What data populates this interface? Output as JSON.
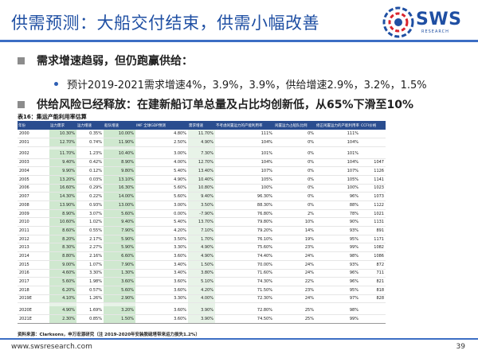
{
  "header": {
    "title": "供需预测：大船交付结束，供需小幅改善",
    "logo_text": "SWS",
    "logo_sub": "RESEARCH"
  },
  "bullets": {
    "b1": "需求增速趋弱，但仍跑赢供给：",
    "b2": "预计2019-2021需求增速4%，3.9%，3.9%，供给增速2.9%，3.2%，1.5%",
    "b3": "供给风险已经释放：在建新船订单总量及占比均创新低，从65%下滑至10%"
  },
  "table": {
    "caption": "表16：集运产能利用率估算",
    "headers": [
      "年份",
      "运力需求",
      "运力增速",
      "船队增速",
      "IMF 全球GDP预测",
      "需求增速",
      "不考虑闲置运力的产能利用率",
      "闲置运力占船队比例",
      "修正闲置运力的产能利用率",
      "CCFI价格"
    ],
    "rows": [
      [
        "2000",
        "10.30%",
        "0.35%",
        "10.00%",
        "4.80%",
        "11.70%",
        "111%",
        "0%",
        "111%",
        ""
      ],
      [
        "2001",
        "12.70%",
        "0.74%",
        "11.90%",
        "2.50%",
        "4.90%",
        "104%",
        "0%",
        "104%",
        ""
      ],
      [
        "2002",
        "11.70%",
        "1.23%",
        "10.40%",
        "3.00%",
        "7.30%",
        "101%",
        "0%",
        "101%",
        ""
      ],
      [
        "2003",
        "9.40%",
        "0.42%",
        "8.90%",
        "4.00%",
        "12.70%",
        "104%",
        "0%",
        "104%",
        "1047"
      ],
      [
        "2004",
        "9.90%",
        "0.12%",
        "9.80%",
        "5.40%",
        "13.40%",
        "107%",
        "0%",
        "107%",
        "1126"
      ],
      [
        "2005",
        "13.20%",
        "0.03%",
        "13.10%",
        "4.90%",
        "10.40%",
        "105%",
        "0%",
        "105%",
        "1141"
      ],
      [
        "2006",
        "16.60%",
        "0.29%",
        "16.30%",
        "5.60%",
        "10.80%",
        "100%",
        "0%",
        "100%",
        "1023"
      ],
      [
        "2007",
        "14.30%",
        "0.22%",
        "14.00%",
        "5.60%",
        "9.40%",
        "96.30%",
        "0%",
        "96%",
        "1073"
      ],
      [
        "2008",
        "13.90%",
        "0.93%",
        "13.00%",
        "3.00%",
        "3.50%",
        "88.30%",
        "0%",
        "88%",
        "1122"
      ],
      [
        "2009",
        "8.90%",
        "3.07%",
        "5.60%",
        "0.00%",
        "-7.90%",
        "76.80%",
        "2%",
        "78%",
        "1021"
      ],
      [
        "2010",
        "10.60%",
        "1.02%",
        "9.40%",
        "5.40%",
        "13.70%",
        "79.80%",
        "10%",
        "90%",
        "1131"
      ],
      [
        "2011",
        "8.60%",
        "0.55%",
        "7.90%",
        "4.20%",
        "7.10%",
        "79.20%",
        "14%",
        "93%",
        "891"
      ],
      [
        "2012",
        "8.20%",
        "2.17%",
        "5.90%",
        "3.50%",
        "1.70%",
        "76.10%",
        "19%",
        "95%",
        "1171"
      ],
      [
        "2013",
        "8.30%",
        "2.27%",
        "5.90%",
        "3.30%",
        "4.90%",
        "75.60%",
        "23%",
        "99%",
        "1082"
      ],
      [
        "2014",
        "8.80%",
        "2.16%",
        "6.60%",
        "3.60%",
        "4.90%",
        "74.40%",
        "24%",
        "98%",
        "1086"
      ],
      [
        "2015",
        "9.00%",
        "1.07%",
        "7.90%",
        "3.40%",
        "1.50%",
        "70.00%",
        "24%",
        "93%",
        "872"
      ],
      [
        "2016",
        "4.60%",
        "3.30%",
        "1.30%",
        "3.40%",
        "3.80%",
        "71.60%",
        "24%",
        "96%",
        "711"
      ],
      [
        "2017",
        "5.60%",
        "1.98%",
        "3.60%",
        "3.60%",
        "5.10%",
        "74.30%",
        "22%",
        "96%",
        "821"
      ],
      [
        "2018",
        "6.20%",
        "0.57%",
        "5.60%",
        "3.60%",
        "4.20%",
        "71.50%",
        "23%",
        "95%",
        "818"
      ],
      [
        "2019E",
        "4.10%",
        "1.26%",
        "2.90%",
        "3.30%",
        "4.00%",
        "72.30%",
        "24%",
        "97%",
        "828"
      ],
      [
        "2020E",
        "4.90%",
        "1.69%",
        "3.20%",
        "3.60%",
        "3.90%",
        "72.80%",
        "25%",
        "98%",
        ""
      ],
      [
        "2021E",
        "2.30%",
        "0.85%",
        "1.50%",
        "3.60%",
        "3.90%",
        "74.50%",
        "25%",
        "99%",
        ""
      ]
    ],
    "source": "资料来源：Clarksons，申万宏源研究（注 2019-2020年安装脱硫塔带来运力损失1.2%）"
  },
  "footer": {
    "url": "www.swsresearch.com",
    "page": "39"
  },
  "colors": {
    "title": "#1f4fa3",
    "rule": "#3c6ec4",
    "table_header": "#2a4d8f",
    "highlight": "#cfe8cf"
  }
}
